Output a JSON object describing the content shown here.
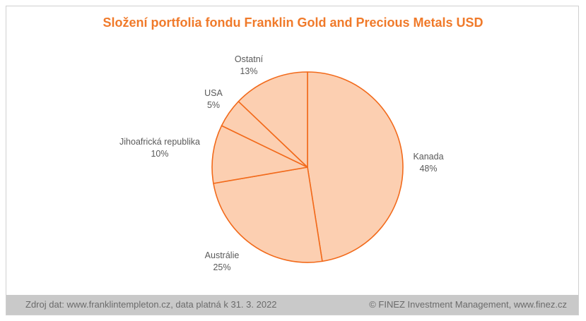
{
  "chart_data": {
    "type": "pie",
    "title": "Složení portfolia fondu Franklin Gold and Precious Metals USD",
    "slices": [
      {
        "label": "Kanada",
        "value": 48,
        "display": "48%"
      },
      {
        "label": "Austrálie",
        "value": 25,
        "display": "25%"
      },
      {
        "label": "Jihoafrická republika",
        "value": 10,
        "display": "10%"
      },
      {
        "label": "USA",
        "value": 5,
        "display": "5%"
      },
      {
        "label": "Ostatní",
        "value": 13,
        "display": "13%"
      }
    ],
    "colors": {
      "fill": "#fccfb1",
      "stroke": "#f26a1b",
      "label": "#595959"
    }
  },
  "footer": {
    "source": "Zdroj dat: www.franklintempleton.cz, data platná k 31. 3. 2022",
    "copyright": "© FINEZ Investment Management, www.finez.cz"
  }
}
